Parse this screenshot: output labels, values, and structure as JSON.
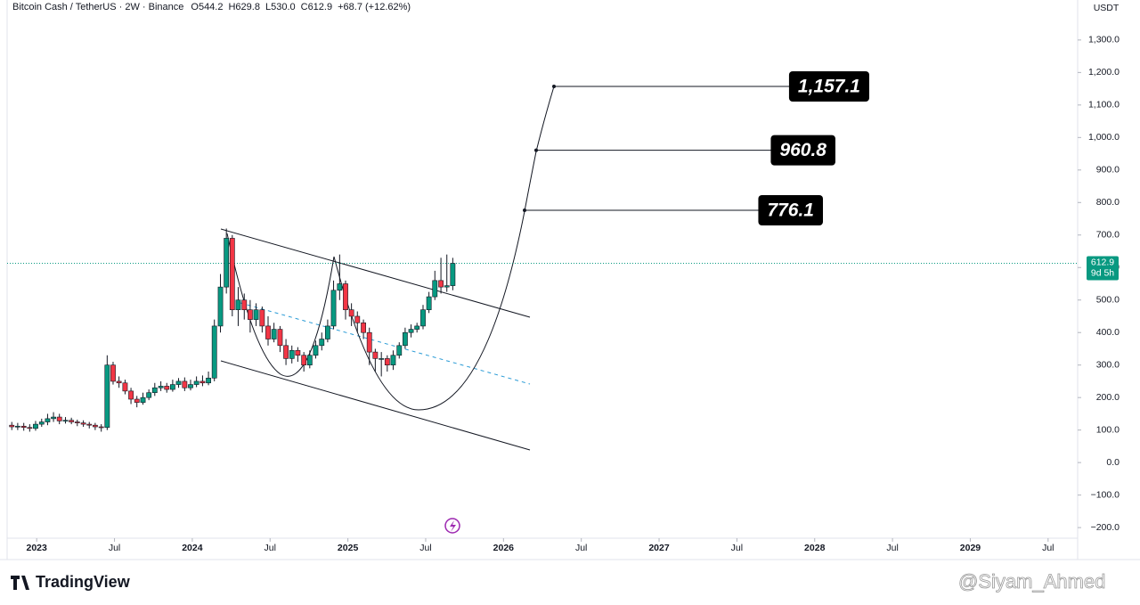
{
  "chart_data": {
    "type": "candlestick",
    "title": "Bitcoin Cash / TetherUS · 2W · Binance",
    "ohlc_labels": [
      "O544.2",
      "H629.8",
      "L530.0",
      "C612.9",
      "+68.7 (+12.62%)"
    ],
    "unit": "USDT",
    "last_price": 612.9,
    "countdown": "9d 5h",
    "brand": "TradingView",
    "watermark": "@Siyam_Ahmed",
    "up_color": "#089981",
    "down_color": "#f23645",
    "x": [
      2022.84,
      2022.878,
      2022.917,
      2022.955,
      2022.993,
      2023.032,
      2023.07,
      2023.108,
      2023.146,
      2023.185,
      2023.223,
      2023.261,
      2023.3,
      2023.338,
      2023.376,
      2023.415,
      2023.453,
      2023.491,
      2023.529,
      2023.568,
      2023.606,
      2023.644,
      2023.683,
      2023.721,
      2023.759,
      2023.798,
      2023.836,
      2023.874,
      2023.912,
      2023.951,
      2023.989,
      2024.027,
      2024.066,
      2024.104,
      2024.142,
      2024.181,
      2024.219,
      2024.257,
      2024.295,
      2024.334,
      2024.372,
      2024.41,
      2024.449,
      2024.487,
      2024.525,
      2024.564,
      2024.602,
      2024.64,
      2024.678,
      2024.717,
      2024.755,
      2024.793,
      2024.832,
      2024.87,
      2024.908,
      2024.947,
      2024.985,
      2025.023,
      2025.061,
      2025.1,
      2025.138,
      2025.176,
      2025.215,
      2025.253,
      2025.291,
      2025.33,
      2025.368,
      2025.406,
      2025.444,
      2025.483,
      2025.521,
      2025.559,
      2025.598,
      2025.636,
      2025.674
    ],
    "open": [
      115,
      110,
      112,
      108,
      105,
      118,
      125,
      135,
      140,
      128,
      130,
      125,
      122,
      118,
      115,
      110,
      108,
      300,
      250,
      245,
      220,
      195,
      185,
      200,
      215,
      230,
      235,
      225,
      240,
      250,
      230,
      240,
      250,
      245,
      260,
      420,
      540,
      690,
      470,
      500,
      470,
      440,
      470,
      420,
      380,
      410,
      360,
      320,
      345,
      330,
      300,
      330,
      360,
      380,
      420,
      530,
      550,
      470,
      450,
      430,
      400,
      340,
      320,
      320,
      300,
      330,
      360,
      400,
      410,
      420,
      470,
      510,
      560,
      540,
      544.2
    ],
    "high": [
      125,
      122,
      122,
      118,
      128,
      135,
      150,
      155,
      150,
      140,
      138,
      132,
      130,
      125,
      122,
      118,
      330,
      310,
      265,
      255,
      230,
      205,
      215,
      225,
      245,
      250,
      245,
      255,
      260,
      262,
      255,
      265,
      268,
      280,
      440,
      580,
      720,
      700,
      540,
      520,
      500,
      490,
      480,
      450,
      430,
      420,
      380,
      360,
      355,
      340,
      345,
      375,
      400,
      440,
      560,
      640,
      560,
      490,
      465,
      440,
      415,
      350,
      340,
      330,
      345,
      370,
      415,
      425,
      430,
      485,
      525,
      590,
      630,
      640,
      629.8
    ],
    "low": [
      100,
      100,
      98,
      95,
      98,
      110,
      115,
      125,
      118,
      120,
      118,
      112,
      110,
      105,
      100,
      95,
      100,
      240,
      230,
      210,
      180,
      170,
      178,
      192,
      205,
      220,
      215,
      218,
      230,
      220,
      222,
      232,
      235,
      238,
      250,
      400,
      520,
      450,
      420,
      440,
      400,
      420,
      400,
      360,
      370,
      340,
      300,
      305,
      310,
      280,
      290,
      320,
      345,
      370,
      410,
      500,
      440,
      420,
      400,
      380,
      300,
      280,
      265,
      280,
      285,
      320,
      350,
      385,
      400,
      410,
      460,
      500,
      520,
      525,
      530
    ],
    "close": [
      110,
      112,
      108,
      105,
      118,
      125,
      135,
      140,
      128,
      130,
      125,
      122,
      118,
      115,
      110,
      108,
      300,
      250,
      245,
      220,
      195,
      185,
      200,
      215,
      230,
      235,
      225,
      240,
      250,
      230,
      240,
      250,
      245,
      260,
      420,
      540,
      690,
      470,
      500,
      470,
      440,
      470,
      420,
      380,
      410,
      360,
      320,
      345,
      330,
      300,
      330,
      360,
      380,
      420,
      530,
      550,
      470,
      450,
      430,
      400,
      340,
      320,
      320,
      300,
      330,
      360,
      400,
      410,
      420,
      470,
      510,
      560,
      540,
      544.2,
      612.9
    ],
    "annotations": [
      {
        "value": 776.1,
        "label": "776.1"
      },
      {
        "value": 960.8,
        "label": "960.8"
      },
      {
        "value": 1157.1,
        "label": "1,157.1"
      }
    ],
    "xlim": [
      2022.81,
      2029.69
    ],
    "ylim": [
      -232.6,
      1423
    ],
    "xticks": [
      2023,
      {
        "value": 2023.5,
        "label": "Jul"
      },
      2024,
      {
        "value": 2024.5,
        "label": "Jul"
      },
      2025,
      {
        "value": 2025.5,
        "label": "Jul"
      },
      2026,
      {
        "value": 2026.5,
        "label": "Jul"
      },
      2027,
      {
        "value": 2027.5,
        "label": "Jul"
      },
      2028,
      {
        "value": 2028.5,
        "label": "Jul"
      },
      2029,
      {
        "value": 2029.5,
        "label": "Jul"
      }
    ],
    "yticks": [
      {
        "value": -200,
        "label": "−200.0"
      },
      {
        "value": -100,
        "label": "−100.0"
      },
      {
        "value": 0,
        "label": "0.0"
      },
      {
        "value": 100,
        "label": "100.0"
      },
      {
        "value": 200,
        "label": "200.0"
      },
      {
        "value": 300,
        "label": "300.0"
      },
      {
        "value": 400,
        "label": "400.0"
      },
      {
        "value": 500,
        "label": "500.0"
      },
      {
        "value": 600,
        "label": "600.0"
      },
      {
        "value": 700,
        "label": "700.0"
      },
      {
        "value": 800,
        "label": "800.0"
      },
      {
        "value": 900,
        "label": "900.0"
      },
      {
        "value": 1000,
        "label": "1,000.0"
      },
      {
        "value": 1100,
        "label": "1,100.0"
      },
      {
        "value": 1200,
        "label": "1,200.0"
      },
      {
        "value": 1300,
        "label": "1,300.0"
      }
    ]
  }
}
